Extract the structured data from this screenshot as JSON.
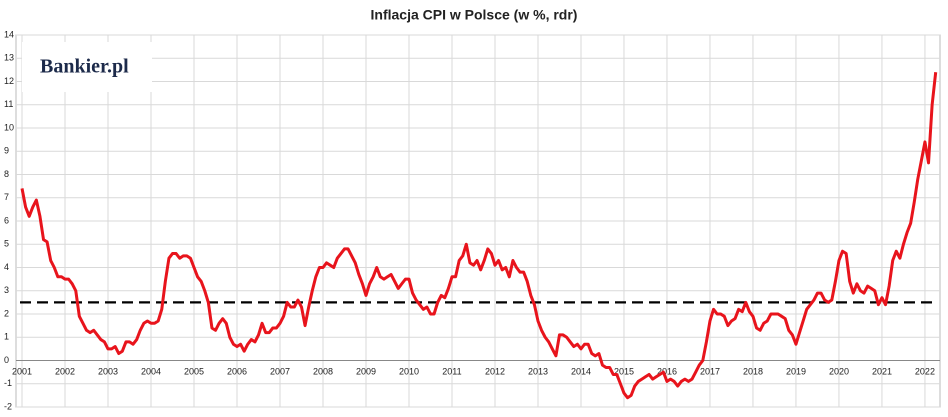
{
  "chart_data": {
    "type": "line",
    "title": "Inflacja CPI w Polsce (w %, rdr)",
    "logo": "Bankier.pl",
    "x": [
      2001,
      2001.083,
      2001.167,
      2001.25,
      2001.333,
      2001.417,
      2001.5,
      2001.583,
      2001.667,
      2001.75,
      2001.833,
      2001.917,
      2002,
      2002.083,
      2002.167,
      2002.25,
      2002.333,
      2002.417,
      2002.5,
      2002.583,
      2002.667,
      2002.75,
      2002.833,
      2002.917,
      2003,
      2003.083,
      2003.167,
      2003.25,
      2003.333,
      2003.417,
      2003.5,
      2003.583,
      2003.667,
      2003.75,
      2003.833,
      2003.917,
      2004,
      2004.083,
      2004.167,
      2004.25,
      2004.333,
      2004.417,
      2004.5,
      2004.583,
      2004.667,
      2004.75,
      2004.833,
      2004.917,
      2005,
      2005.083,
      2005.167,
      2005.25,
      2005.333,
      2005.417,
      2005.5,
      2005.583,
      2005.667,
      2005.75,
      2005.833,
      2005.917,
      2006,
      2006.083,
      2006.167,
      2006.25,
      2006.333,
      2006.417,
      2006.5,
      2006.583,
      2006.667,
      2006.75,
      2006.833,
      2006.917,
      2007,
      2007.083,
      2007.167,
      2007.25,
      2007.333,
      2007.417,
      2007.5,
      2007.583,
      2007.667,
      2007.75,
      2007.833,
      2007.917,
      2008,
      2008.083,
      2008.167,
      2008.25,
      2008.333,
      2008.417,
      2008.5,
      2008.583,
      2008.667,
      2008.75,
      2008.833,
      2008.917,
      2009,
      2009.083,
      2009.167,
      2009.25,
      2009.333,
      2009.417,
      2009.5,
      2009.583,
      2009.667,
      2009.75,
      2009.833,
      2009.917,
      2010,
      2010.083,
      2010.167,
      2010.25,
      2010.333,
      2010.417,
      2010.5,
      2010.583,
      2010.667,
      2010.75,
      2010.833,
      2010.917,
      2011,
      2011.083,
      2011.167,
      2011.25,
      2011.333,
      2011.417,
      2011.5,
      2011.583,
      2011.667,
      2011.75,
      2011.833,
      2011.917,
      2012,
      2012.083,
      2012.167,
      2012.25,
      2012.333,
      2012.417,
      2012.5,
      2012.583,
      2012.667,
      2012.75,
      2012.833,
      2012.917,
      2013,
      2013.083,
      2013.167,
      2013.25,
      2013.333,
      2013.417,
      2013.5,
      2013.583,
      2013.667,
      2013.75,
      2013.833,
      2013.917,
      2014,
      2014.083,
      2014.167,
      2014.25,
      2014.333,
      2014.417,
      2014.5,
      2014.583,
      2014.667,
      2014.75,
      2014.833,
      2014.917,
      2015,
      2015.083,
      2015.167,
      2015.25,
      2015.333,
      2015.417,
      2015.5,
      2015.583,
      2015.667,
      2015.75,
      2015.833,
      2015.917,
      2016,
      2016.083,
      2016.167,
      2016.25,
      2016.333,
      2016.417,
      2016.5,
      2016.583,
      2016.667,
      2016.75,
      2016.833,
      2016.917,
      2017,
      2017.083,
      2017.167,
      2017.25,
      2017.333,
      2017.417,
      2017.5,
      2017.583,
      2017.667,
      2017.75,
      2017.833,
      2017.917,
      2018,
      2018.083,
      2018.167,
      2018.25,
      2018.333,
      2018.417,
      2018.5,
      2018.583,
      2018.667,
      2018.75,
      2018.833,
      2018.917,
      2019,
      2019.083,
      2019.167,
      2019.25,
      2019.333,
      2019.417,
      2019.5,
      2019.583,
      2019.667,
      2019.75,
      2019.833,
      2019.917,
      2020,
      2020.083,
      2020.167,
      2020.25,
      2020.333,
      2020.417,
      2020.5,
      2020.583,
      2020.667,
      2020.75,
      2020.833,
      2020.917,
      2021,
      2021.083,
      2021.167,
      2021.25,
      2021.333,
      2021.417,
      2021.5,
      2021.583,
      2021.667,
      2021.75,
      2021.833,
      2021.917,
      2022,
      2022.083,
      2022.167,
      2022.25
    ],
    "series": [
      {
        "color": "#e8141c",
        "values": [
          7.4,
          6.6,
          6.2,
          6.6,
          6.9,
          6.2,
          5.2,
          5.1,
          4.3,
          4.0,
          3.6,
          3.6,
          3.5,
          3.5,
          3.3,
          3.0,
          1.9,
          1.6,
          1.3,
          1.2,
          1.3,
          1.1,
          0.9,
          0.8,
          0.5,
          0.5,
          0.6,
          0.3,
          0.4,
          0.8,
          0.8,
          0.7,
          0.9,
          1.3,
          1.6,
          1.7,
          1.6,
          1.6,
          1.7,
          2.2,
          3.4,
          4.4,
          4.6,
          4.6,
          4.4,
          4.5,
          4.5,
          4.4,
          4.0,
          3.6,
          3.4,
          3.0,
          2.5,
          1.4,
          1.3,
          1.6,
          1.8,
          1.6,
          1.0,
          0.7,
          0.6,
          0.7,
          0.4,
          0.7,
          0.9,
          0.8,
          1.1,
          1.6,
          1.2,
          1.2,
          1.4,
          1.4,
          1.6,
          1.9,
          2.5,
          2.3,
          2.3,
          2.6,
          2.3,
          1.5,
          2.3,
          3.0,
          3.6,
          4.0,
          4.0,
          4.2,
          4.1,
          4.0,
          4.4,
          4.6,
          4.8,
          4.8,
          4.5,
          4.2,
          3.7,
          3.3,
          2.8,
          3.3,
          3.6,
          4.0,
          3.6,
          3.5,
          3.6,
          3.7,
          3.4,
          3.1,
          3.3,
          3.5,
          3.5,
          2.9,
          2.6,
          2.4,
          2.2,
          2.3,
          2.0,
          2.0,
          2.5,
          2.8,
          2.7,
          3.1,
          3.6,
          3.6,
          4.3,
          4.5,
          5.0,
          4.2,
          4.1,
          4.3,
          3.9,
          4.3,
          4.8,
          4.6,
          4.1,
          4.3,
          3.9,
          4.0,
          3.6,
          4.3,
          4.0,
          3.8,
          3.8,
          3.4,
          2.8,
          2.4,
          1.7,
          1.3,
          1.0,
          0.8,
          0.5,
          0.2,
          1.1,
          1.1,
          1.0,
          0.8,
          0.6,
          0.7,
          0.5,
          0.7,
          0.7,
          0.3,
          0.2,
          0.3,
          -0.2,
          -0.3,
          -0.3,
          -0.6,
          -0.6,
          -1.0,
          -1.4,
          -1.6,
          -1.5,
          -1.1,
          -0.9,
          -0.8,
          -0.7,
          -0.6,
          -0.8,
          -0.7,
          -0.6,
          -0.5,
          -0.9,
          -0.8,
          -0.9,
          -1.1,
          -0.9,
          -0.8,
          -0.9,
          -0.8,
          -0.5,
          -0.2,
          0.0,
          0.8,
          1.7,
          2.2,
          2.0,
          2.0,
          1.9,
          1.5,
          1.7,
          1.8,
          2.2,
          2.1,
          2.5,
          2.1,
          1.9,
          1.4,
          1.3,
          1.6,
          1.7,
          2.0,
          2.0,
          2.0,
          1.9,
          1.8,
          1.3,
          1.1,
          0.7,
          1.2,
          1.7,
          2.2,
          2.4,
          2.6,
          2.9,
          2.9,
          2.6,
          2.5,
          2.6,
          3.4,
          4.3,
          4.7,
          4.6,
          3.4,
          2.9,
          3.3,
          3.0,
          2.9,
          3.2,
          3.1,
          3.0,
          2.4,
          2.7,
          2.4,
          3.2,
          4.3,
          4.7,
          4.4,
          5.0,
          5.5,
          5.9,
          6.8,
          7.8,
          8.6,
          9.4,
          8.5,
          11.0,
          12.4
        ]
      }
    ],
    "target": 2.5,
    "target_color": "#000000",
    "xlim": [
      2000.86,
      2022.35
    ],
    "xticks": [
      2001,
      2002,
      2003,
      2004,
      2005,
      2006,
      2007,
      2008,
      2009,
      2010,
      2011,
      2012,
      2013,
      2014,
      2015,
      2016,
      2017,
      2018,
      2019,
      2020,
      2021,
      2022
    ],
    "ylim": [
      -2,
      14
    ],
    "yticks": [
      -2,
      -1,
      0,
      1,
      2,
      3,
      4,
      5,
      6,
      7,
      8,
      9,
      10,
      11,
      12,
      13,
      14
    ],
    "grid": true
  }
}
